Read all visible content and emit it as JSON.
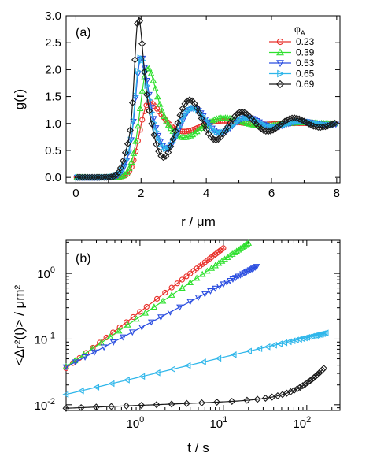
{
  "chart_data": [
    {
      "type": "line",
      "panel_label": "(a)",
      "xlabel": "r / μm",
      "ylabel": "g(r)",
      "xlim": [
        -0.3,
        8.1
      ],
      "ylim": [
        -0.1,
        3.0
      ],
      "xticks": [
        0,
        2,
        4,
        6,
        8
      ],
      "yticks": [
        0.0,
        0.5,
        1.0,
        1.5,
        2.0,
        2.5,
        3.0
      ],
      "xtick_labels": [
        "0",
        "2",
        "4",
        "6",
        "8"
      ],
      "ytick_labels": [
        "0.0",
        "0.5",
        "1.0",
        "1.5",
        "2.0",
        "2.5",
        "3.0"
      ],
      "grid": false,
      "legend": {
        "title": "φ",
        "title_subscript": "A",
        "placement": "top-right",
        "entries": [
          "0.23",
          "0.39",
          "0.53",
          "0.65",
          "0.69"
        ]
      },
      "series": [
        {
          "name": "0.23",
          "color": "#e8302a",
          "marker": "circle",
          "params": {
            "r0": 2.25,
            "h": 1.42,
            "w": 0.42,
            "A": 0.42,
            "L": 1.1,
            "d": 2.4,
            "rs": 1.78,
            "sw": 0.11
          }
        },
        {
          "name": "0.39",
          "color": "#2ee02e",
          "marker": "triangle-up",
          "params": {
            "r0": 2.2,
            "h": 2.05,
            "w": 0.3,
            "A": 0.62,
            "L": 1.35,
            "d": 2.45,
            "rs": 1.72,
            "sw": 0.1
          }
        },
        {
          "name": "0.53",
          "color": "#2a4de0",
          "marker": "triangle-down",
          "params": {
            "r0": 2.0,
            "h": 2.25,
            "w": 0.23,
            "A": 0.75,
            "L": 1.7,
            "d": 1.65,
            "rs": 1.55,
            "sw": 0.1
          }
        },
        {
          "name": "0.65",
          "color": "#2eb6ea",
          "marker": "triangle-right",
          "params": {
            "r0": 1.98,
            "h": 2.25,
            "w": 0.22,
            "A": 0.75,
            "L": 1.7,
            "d": 1.65,
            "rs": 1.52,
            "sw": 0.1
          }
        },
        {
          "name": "0.69",
          "color": "#1a1a1a",
          "marker": "diamond",
          "params": {
            "r0": 1.92,
            "h": 2.98,
            "w": 0.17,
            "A": 0.9,
            "L": 2.2,
            "d": 1.6,
            "rs": 1.48,
            "sw": 0.09
          }
        }
      ]
    },
    {
      "type": "line",
      "panel_label": "(b)",
      "xlabel": "t / s",
      "ylabel": "<Δr²(t)> / μm²",
      "xscale": "log",
      "yscale": "log",
      "xlim": [
        0.13,
        250
      ],
      "ylim": [
        0.0082,
        3.2
      ],
      "xticks": [
        1,
        10,
        100
      ],
      "yticks": [
        0.01,
        0.1,
        1
      ],
      "xtick_labels": [
        "10^0",
        "10^1",
        "10^2"
      ],
      "ytick_labels": [
        "10^-2",
        "10^-1",
        "10^0"
      ],
      "grid": false,
      "series": [
        {
          "name": "0.23",
          "color": "#e8302a",
          "marker": "circle",
          "t_range": [
            0.13,
            10
          ],
          "fit": {
            "a": 0.26,
            "n": 0.97,
            "b": 0
          }
        },
        {
          "name": "0.39",
          "color": "#2ee02e",
          "marker": "triangle-up",
          "t_range": [
            0.13,
            20
          ],
          "fit": {
            "a": 0.22,
            "n": 0.86,
            "b": 0
          }
        },
        {
          "name": "0.53",
          "color": "#2a4de0",
          "marker": "triangle-down",
          "t_range": [
            0.13,
            25
          ],
          "fit": {
            "a": 0.147,
            "n": 0.67,
            "b": 0
          }
        },
        {
          "name": "0.65",
          "color": "#2eb6ea",
          "marker": "triangle-left",
          "t_range": [
            0.13,
            170
          ],
          "fit": {
            "a": 0.0265,
            "n": 0.3,
            "b": 0
          }
        },
        {
          "name": "0.69",
          "color": "#1a1a1a",
          "marker": "diamond",
          "t_range": [
            0.13,
            160
          ],
          "fit": {
            "a": 0.0098,
            "n": 0.05,
            "b": 9e-07,
            "m": 2
          }
        }
      ]
    }
  ]
}
